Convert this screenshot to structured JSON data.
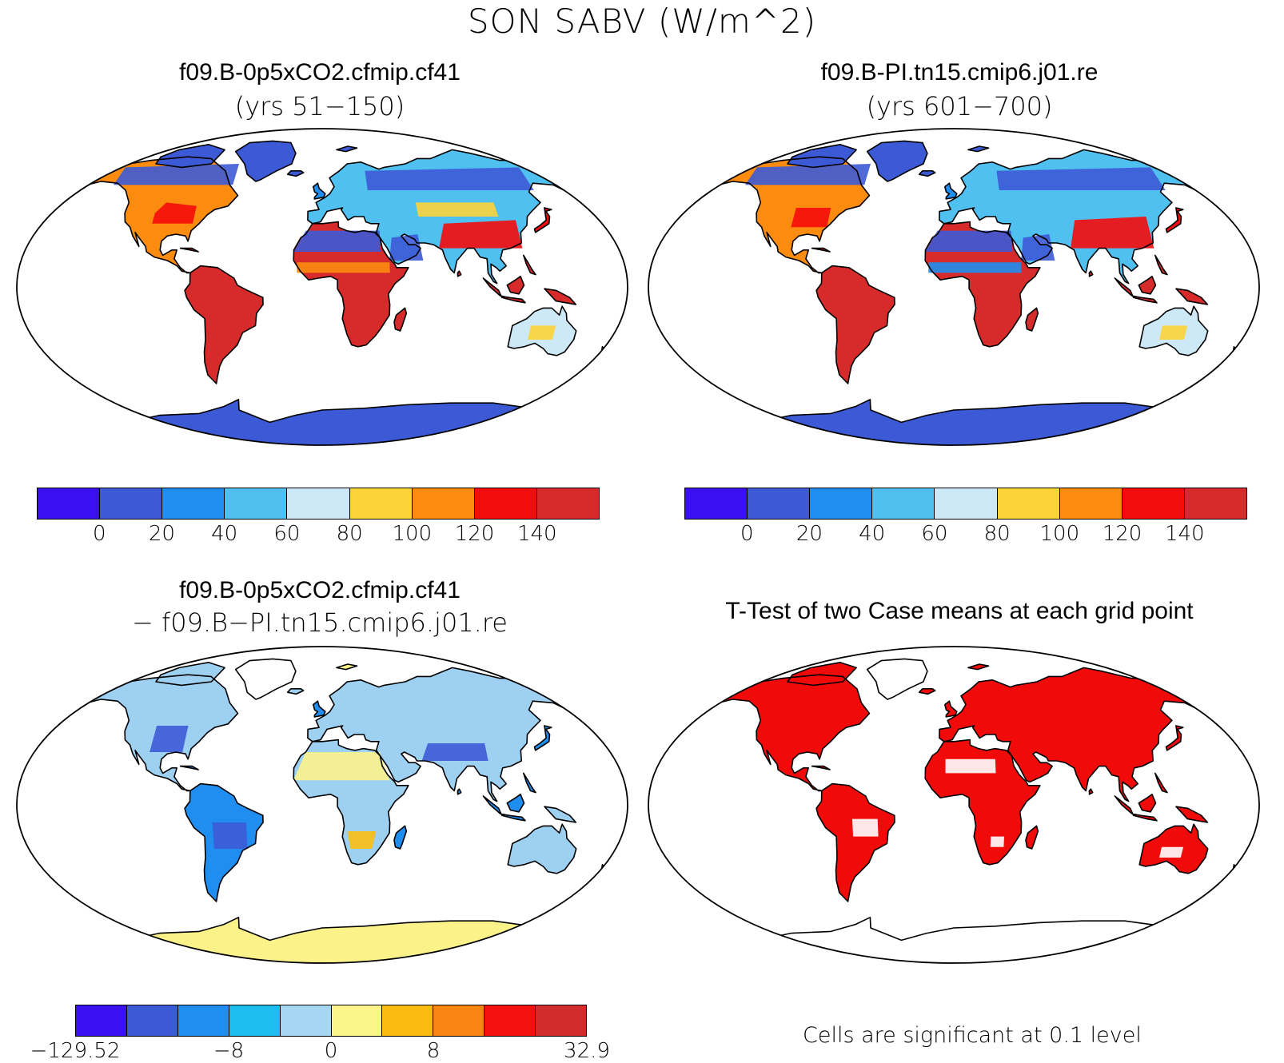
{
  "figure_title": "SON SABV (W/m^2)",
  "panels": {
    "top_left": {
      "title": "f09.B-0p5xCO2.cfmip.cf41",
      "subtitle": "(yrs 51−150)"
    },
    "top_right": {
      "title": "f09.B-PI.tn15.cmip6.j01.re",
      "subtitle": "(yrs 601−700)"
    },
    "bottom_left": {
      "title": "f09.B-0p5xCO2.cfmip.cf41",
      "subtitle": "− f09.B−PI.tn15.cmip6.j01.re"
    },
    "bottom_right": {
      "title": "T-Test of two Case means at each grid point"
    }
  },
  "colorbars": {
    "absolute": {
      "colors": [
        "#3a10f0",
        "#3d5ad6",
        "#1f8ef0",
        "#50c0f0",
        "#cde9f7",
        "#fdd438",
        "#fb8c10",
        "#f40b0b",
        "#d72a2a"
      ],
      "labels": [
        "0",
        "20",
        "40",
        "60",
        "80",
        "100",
        "120",
        "140"
      ]
    },
    "difference": {
      "colors": [
        "#3a10f0",
        "#3d5ad6",
        "#1f8ef0",
        "#1dbdf0",
        "#a6d6f2",
        "#fbf58a",
        "#fbbc12",
        "#fb8512",
        "#f51010",
        "#d22c2c"
      ],
      "labels": [
        "−129.52",
        "−8",
        "0",
        "8",
        "32.9"
      ]
    }
  },
  "significance_note": "Cells are significant at 0.1 level",
  "map_colors": {
    "ocean": "#ffffff",
    "coast": "#000000",
    "significant": "#f00a0a",
    "diff_land": "#9ed0f2",
    "diff_high": "#fbf28a",
    "abs_cold": "#3d5ad6",
    "abs_hot": "#d72a2a"
  }
}
